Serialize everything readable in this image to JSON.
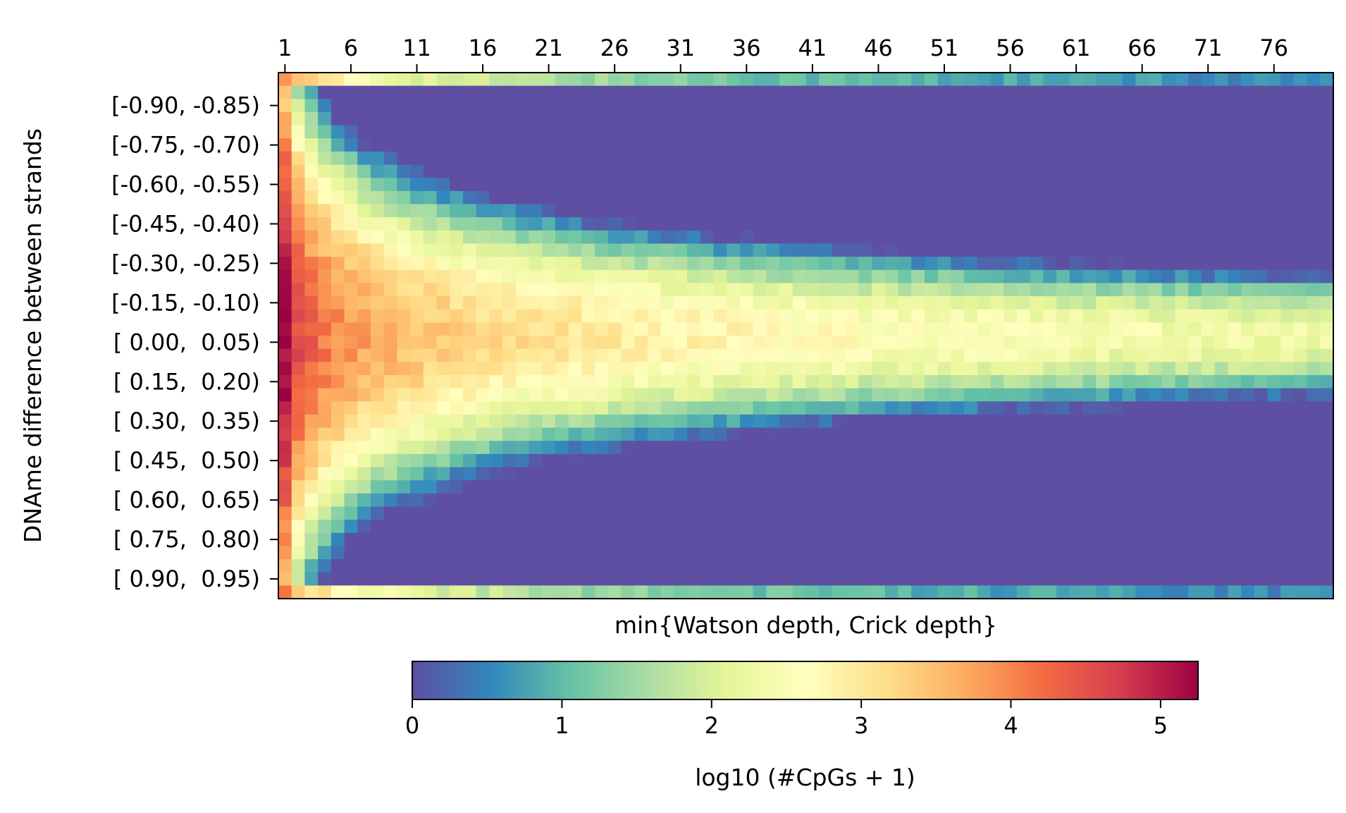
{
  "chart_data": {
    "type": "heatmap",
    "xlabel": "min{Watson depth, Crick depth}",
    "ylabel": "DNAme difference between strands",
    "x_range": [
      1,
      80
    ],
    "x_tick_labels": [
      "1",
      "6",
      "11",
      "16",
      "21",
      "26",
      "31",
      "36",
      "41",
      "46",
      "51",
      "56",
      "61",
      "66",
      "71",
      "76"
    ],
    "y_bins": "40 bins of width 0.05 from [-1.00, -0.95) to [0.95, 1.00)",
    "y_tick_labels": [
      "[-0.90, -0.85)",
      "[-0.75, -0.70)",
      "[-0.60, -0.55)",
      "[-0.45, -0.40)",
      "[-0.30, -0.25)",
      "[-0.15, -0.10)",
      "[ 0.00,  0.05)",
      "[ 0.15,  0.20)",
      "[ 0.30,  0.35)",
      "[ 0.45,  0.50)",
      "[ 0.60,  0.65)",
      "[ 0.75,  0.80)",
      "[ 0.90,  0.95)"
    ],
    "colormap": "Spectral_r",
    "colorbar": {
      "label": "log10 (#CpGs + 1)",
      "range": [
        0,
        5.25
      ],
      "tick_labels": [
        "0",
        "1",
        "2",
        "3",
        "4",
        "5"
      ],
      "colors": [
        "#5e4fa2",
        "#3288bd",
        "#66c2a5",
        "#abdda4",
        "#e6f598",
        "#ffffbf",
        "#fee08b",
        "#fdae61",
        "#f46d43",
        "#d53e4f",
        "#9e0142"
      ]
    },
    "value_model": {
      "description": "approximate log10(#CpGs+1) per cell; center bin [0.00,0.05) peaks near 5.2 at depth 1 and decays to ~2.3 at depth 80; values fall off with |DNAme difference|, with edge bins (+/-1) elevated at low depth",
      "peak_at_depth_1": 5.2,
      "peak_at_depth_80": 2.3,
      "edge_bins_at_depth_1": 4.1
    }
  }
}
